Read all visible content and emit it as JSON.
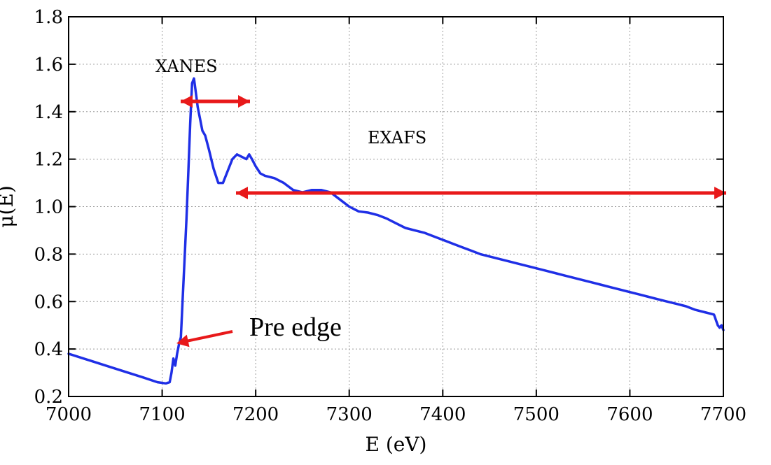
{
  "chart_data": {
    "type": "line",
    "title": "",
    "xlabel": "E (eV)",
    "ylabel": "μ(E)",
    "xlim": [
      7000,
      7700
    ],
    "ylim": [
      0.2,
      1.8
    ],
    "grid": true,
    "xticks": [
      "7000",
      "7100",
      "7200",
      "7300",
      "7400",
      "7500",
      "7600",
      "7700"
    ],
    "yticks": [
      "0.2",
      "0.4",
      "0.6",
      "0.8",
      "1.0",
      "1.2",
      "1.4",
      "1.6",
      "1.8"
    ],
    "series_color": "#1f2fe6",
    "annotation_color": "#e8191a",
    "series": [
      {
        "x": [
          7000,
          7020,
          7040,
          7060,
          7080,
          7095,
          7104,
          7108,
          7110,
          7112,
          7114,
          7116,
          7118,
          7120,
          7122,
          7124,
          7126,
          7128,
          7130,
          7132,
          7134,
          7136,
          7138,
          7140,
          7143,
          7146,
          7150,
          7155,
          7160,
          7165,
          7170,
          7175,
          7180,
          7185,
          7190,
          7193,
          7196,
          7200,
          7205,
          7210,
          7220,
          7230,
          7240,
          7250,
          7260,
          7270,
          7280,
          7290,
          7300,
          7310,
          7320,
          7330,
          7340,
          7350,
          7360,
          7370,
          7380,
          7390,
          7400,
          7410,
          7420,
          7430,
          7440,
          7450,
          7460,
          7470,
          7480,
          7490,
          7500,
          7510,
          7520,
          7530,
          7540,
          7550,
          7560,
          7570,
          7580,
          7590,
          7600,
          7610,
          7620,
          7630,
          7640,
          7650,
          7660,
          7670,
          7680,
          7690,
          7694,
          7696,
          7698,
          7700
        ],
        "y": [
          0.38,
          0.355,
          0.33,
          0.305,
          0.28,
          0.26,
          0.255,
          0.26,
          0.3,
          0.36,
          0.33,
          0.38,
          0.42,
          0.45,
          0.62,
          0.78,
          0.95,
          1.15,
          1.35,
          1.52,
          1.54,
          1.48,
          1.42,
          1.38,
          1.32,
          1.3,
          1.24,
          1.16,
          1.1,
          1.1,
          1.15,
          1.2,
          1.22,
          1.21,
          1.2,
          1.22,
          1.2,
          1.17,
          1.14,
          1.13,
          1.12,
          1.1,
          1.07,
          1.06,
          1.07,
          1.07,
          1.06,
          1.03,
          1.0,
          0.98,
          0.975,
          0.965,
          0.95,
          0.93,
          0.91,
          0.9,
          0.89,
          0.875,
          0.86,
          0.845,
          0.83,
          0.815,
          0.8,
          0.79,
          0.78,
          0.77,
          0.76,
          0.75,
          0.74,
          0.73,
          0.72,
          0.71,
          0.7,
          0.69,
          0.68,
          0.67,
          0.66,
          0.65,
          0.64,
          0.63,
          0.62,
          0.61,
          0.6,
          0.59,
          0.58,
          0.565,
          0.555,
          0.545,
          0.5,
          0.49,
          0.5,
          0.48
        ]
      }
    ],
    "annotations": [
      {
        "text": "XANES"
      },
      {
        "text": "EXAFS"
      },
      {
        "text": "Pre edge"
      }
    ]
  }
}
